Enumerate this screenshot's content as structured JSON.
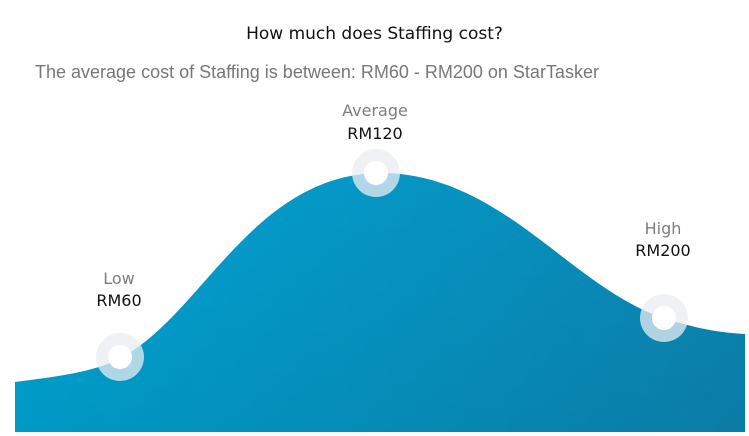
{
  "header": {
    "title": "How much does Staffing cost?",
    "subtitle": "The average cost of Staffing is between: RM60 - RM200 on StarTasker"
  },
  "colors": {
    "curve_start": "#00a6d6",
    "curve_end": "#0b86b4",
    "marker_ring": "#e9eef1",
    "marker_center": "#ffffff"
  },
  "chart_data": {
    "type": "area",
    "currency": "RM",
    "points": [
      {
        "name": "Low",
        "value": 60,
        "value_label": "RM60"
      },
      {
        "name": "Average",
        "value": 120,
        "value_label": "RM120"
      },
      {
        "name": "High",
        "value": 200,
        "value_label": "RM200"
      }
    ]
  }
}
